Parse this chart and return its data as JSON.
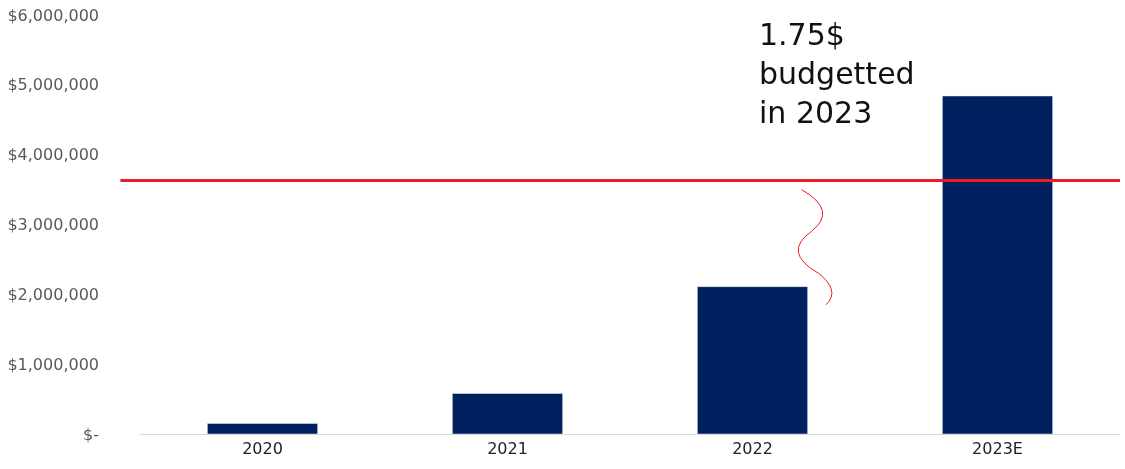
{
  "chart_data": {
    "type": "bar",
    "categories": [
      "2020",
      "2021",
      "2022",
      "2023E"
    ],
    "values": [
      150000,
      580000,
      2110000,
      4840000
    ],
    "color": "#002060",
    "ylim": [
      0,
      6000000
    ],
    "yticks": [
      {
        "value": 0,
        "label": "$-"
      },
      {
        "value": 1000000,
        "label": "$1,000,000"
      },
      {
        "value": 2000000,
        "label": "$2,000,000"
      },
      {
        "value": 3000000,
        "label": "$3,000,000"
      },
      {
        "value": 4000000,
        "label": "$4,000,000"
      },
      {
        "value": 5000000,
        "label": "$5,000,000"
      },
      {
        "value": 6000000,
        "label": "$6,000,000"
      }
    ],
    "ref_lines": [
      {
        "axis": "y",
        "value": 3630000,
        "color": "#ee1c25"
      }
    ],
    "annotations": [
      "1.75$\nbudgetted\nin 2023"
    ]
  }
}
